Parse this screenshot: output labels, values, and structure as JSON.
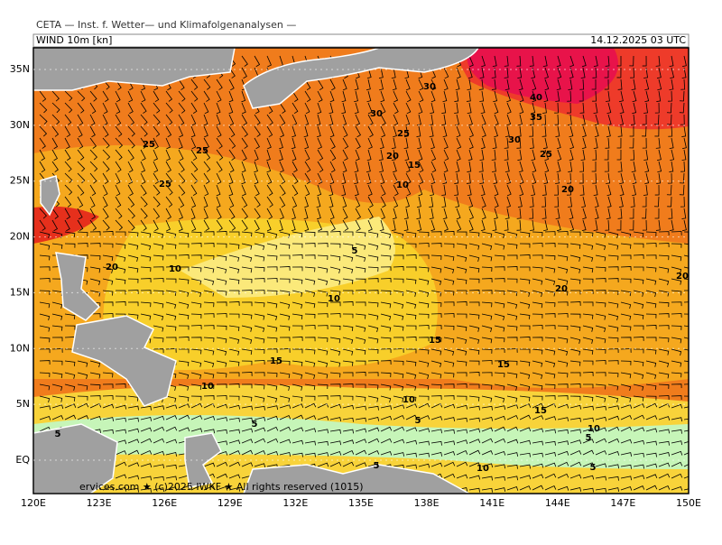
{
  "header": {
    "title": "CETA — Inst. f. Wetter— und Klimafolgenanalysen —",
    "field": "WIND 10m [kn]",
    "time": "14.12.2025 03 UTC"
  },
  "footer": "ervices.com ★ (c)2025 IWKF ★ All rights reserved (1015)",
  "lat_labels": [
    "35N",
    "30N",
    "25N",
    "20N",
    "15N",
    "10N",
    "5N",
    "EQ"
  ],
  "lon_labels": [
    "120E",
    "123E",
    "126E",
    "129E",
    "132E",
    "135E",
    "138E",
    "141E",
    "144E",
    "147E",
    "150E"
  ],
  "contour_labels": [
    30,
    40,
    35,
    30,
    30,
    25,
    25,
    25,
    20,
    25,
    15,
    25,
    10,
    20,
    5,
    20,
    10,
    20,
    20,
    10,
    15,
    15,
    15,
    10,
    10,
    15,
    5,
    5,
    10,
    5,
    5,
    5,
    10,
    5
  ]
}
